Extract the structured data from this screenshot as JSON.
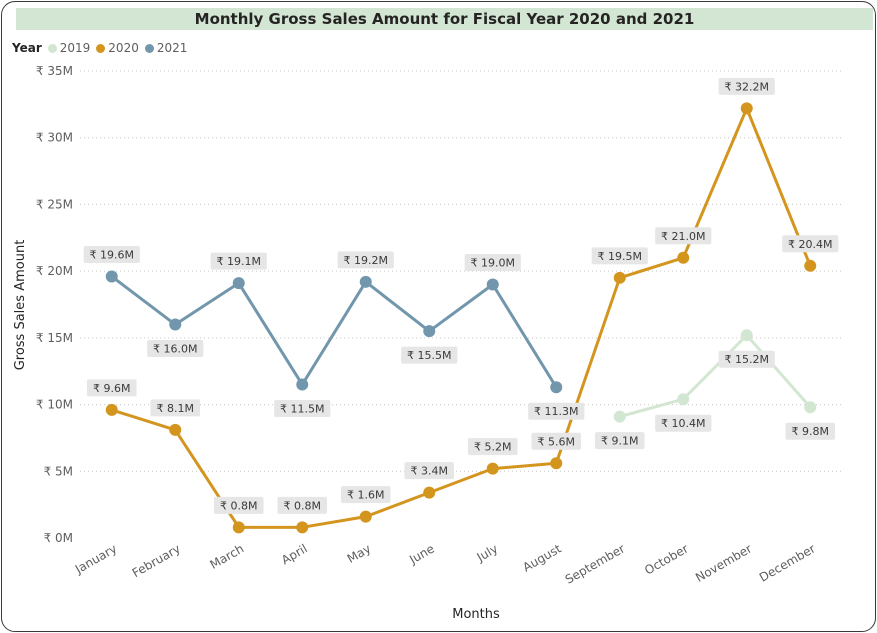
{
  "chart_data": {
    "type": "line",
    "title": "Monthly Gross Sales Amount for Fiscal Year 2020 and 2021",
    "xlabel": "Months",
    "ylabel": "Gross Sales Amount",
    "legend_title": "Year",
    "legend_position": "top-left",
    "grid": true,
    "ylim": [
      0,
      35
    ],
    "y_ticks": [
      0,
      5,
      10,
      15,
      20,
      25,
      30,
      35
    ],
    "y_tick_labels": [
      "₹ 0M",
      "₹ 5M",
      "₹ 10M",
      "₹ 15M",
      "₹ 20M",
      "₹ 25M",
      "₹ 30M",
      "₹ 35M"
    ],
    "categories": [
      "January",
      "February",
      "March",
      "April",
      "May",
      "June",
      "July",
      "August",
      "September",
      "October",
      "November",
      "December"
    ],
    "series": [
      {
        "name": "2019",
        "color": "#d2e6d2",
        "label_pos": "below",
        "values": [
          null,
          null,
          null,
          null,
          null,
          null,
          null,
          null,
          9.1,
          10.4,
          15.2,
          9.8
        ],
        "labels": [
          null,
          null,
          null,
          null,
          null,
          null,
          null,
          null,
          "₹ 9.1M",
          "₹ 10.4M",
          "₹ 15.2M",
          "₹ 9.8M"
        ]
      },
      {
        "name": "2020",
        "color": "#d4951f",
        "label_pos": "above",
        "values": [
          9.6,
          8.1,
          0.8,
          0.8,
          1.6,
          3.4,
          5.2,
          5.6,
          19.5,
          21.0,
          32.2,
          20.4
        ],
        "labels": [
          "₹ 9.6M",
          "₹ 8.1M",
          "₹ 0.8M",
          "₹ 0.8M",
          "₹ 1.6M",
          "₹ 3.4M",
          "₹ 5.2M",
          "₹ 5.6M",
          "₹ 19.5M",
          "₹ 21.0M",
          "₹ 32.2M",
          "₹ 20.4M"
        ]
      },
      {
        "name": "2021",
        "color": "#7296ab",
        "label_pos": "alternate",
        "values": [
          19.6,
          16.0,
          19.1,
          11.5,
          19.2,
          15.5,
          19.0,
          11.3,
          null,
          null,
          null,
          null
        ],
        "labels": [
          "₹ 19.6M",
          "₹ 16.0M",
          "₹ 19.1M",
          "₹ 11.5M",
          "₹ 19.2M",
          "₹ 15.5M",
          "₹ 19.0M",
          "₹ 11.3M",
          null,
          null,
          null,
          null
        ]
      }
    ]
  }
}
